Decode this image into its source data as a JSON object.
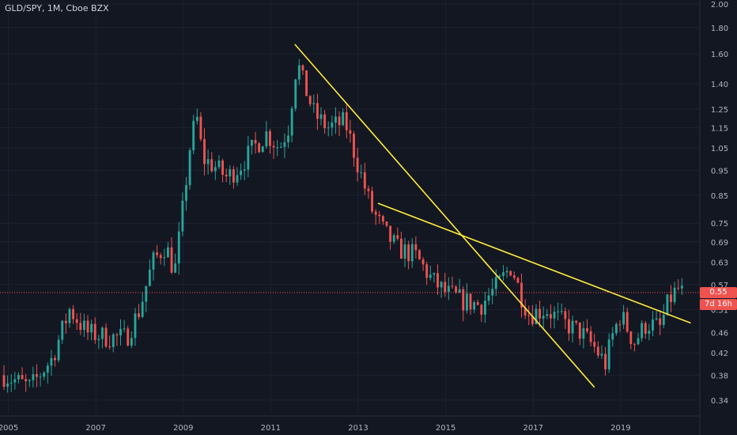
{
  "title": "GLD/SPY, 1M, Cboe BZX",
  "last_price_label": "0.55",
  "countdown_label": "7d 16h",
  "colors": {
    "background": "#131722",
    "up": "#26a69a",
    "down": "#ef5350",
    "trendline": "#ffeb3b",
    "grid": "#1e2230",
    "axis_text": "#b2b5be"
  },
  "chart_data": {
    "type": "candlestick",
    "title": "GLD/SPY, 1M, Cboe BZX",
    "y_scale": "log",
    "ylim": [
      0.32,
      2.0
    ],
    "xlim": [
      2004.9,
      2020.9
    ],
    "y_ticks": [
      "2.00",
      "1.80",
      "1.60",
      "1.40",
      "1.25",
      "1.15",
      "1.05",
      "0.95",
      "0.85",
      "0.75",
      "0.69",
      "0.63",
      "0.57",
      "0.51",
      "0.46",
      "0.42",
      "0.38",
      "0.34"
    ],
    "x_ticks": [
      "2005",
      "2007",
      "2009",
      "2011",
      "2013",
      "2015",
      "2017",
      "2019"
    ],
    "last_price": 0.55,
    "price_path": [
      [
        2004.9,
        0.38
      ],
      [
        2005.5,
        0.36
      ],
      [
        2006.0,
        0.41
      ],
      [
        2006.4,
        0.51
      ],
      [
        2006.8,
        0.46
      ],
      [
        2007.3,
        0.45
      ],
      [
        2007.7,
        0.45
      ],
      [
        2008.0,
        0.51
      ],
      [
        2008.3,
        0.63
      ],
      [
        2008.6,
        0.68
      ],
      [
        2008.8,
        0.6
      ],
      [
        2008.95,
        0.75
      ],
      [
        2009.15,
        1.05
      ],
      [
        2009.3,
        1.22
      ],
      [
        2009.45,
        1.0
      ],
      [
        2009.7,
        0.97
      ],
      [
        2010.0,
        0.92
      ],
      [
        2010.3,
        0.97
      ],
      [
        2010.6,
        1.05
      ],
      [
        2010.9,
        1.12
      ],
      [
        2011.2,
        1.05
      ],
      [
        2011.4,
        1.15
      ],
      [
        2011.6,
        1.55
      ],
      [
        2011.75,
        1.4
      ],
      [
        2012.0,
        1.22
      ],
      [
        2012.3,
        1.15
      ],
      [
        2012.7,
        1.18
      ],
      [
        2013.0,
        0.97
      ],
      [
        2013.3,
        0.8
      ],
      [
        2013.6,
        0.72
      ],
      [
        2013.9,
        0.67
      ],
      [
        2014.3,
        0.65
      ],
      [
        2014.7,
        0.58
      ],
      [
        2015.0,
        0.55
      ],
      [
        2015.4,
        0.53
      ],
      [
        2015.8,
        0.52
      ],
      [
        2016.2,
        0.57
      ],
      [
        2016.5,
        0.62
      ],
      [
        2016.7,
        0.55
      ],
      [
        2016.9,
        0.5
      ],
      [
        2017.3,
        0.51
      ],
      [
        2017.7,
        0.48
      ],
      [
        2018.1,
        0.46
      ],
      [
        2018.4,
        0.43
      ],
      [
        2018.65,
        0.4
      ],
      [
        2018.8,
        0.45
      ],
      [
        2019.0,
        0.5
      ],
      [
        2019.3,
        0.44
      ],
      [
        2019.6,
        0.48
      ],
      [
        2019.9,
        0.47
      ],
      [
        2020.1,
        0.53
      ],
      [
        2020.3,
        0.56
      ],
      [
        2020.4,
        0.55
      ]
    ],
    "trendlines": [
      {
        "from": [
          2011.55,
          1.67
        ],
        "to": [
          2018.4,
          0.36
        ]
      },
      {
        "from": [
          2013.45,
          0.82
        ],
        "to": [
          2020.6,
          0.48
        ]
      }
    ],
    "grid": true
  }
}
